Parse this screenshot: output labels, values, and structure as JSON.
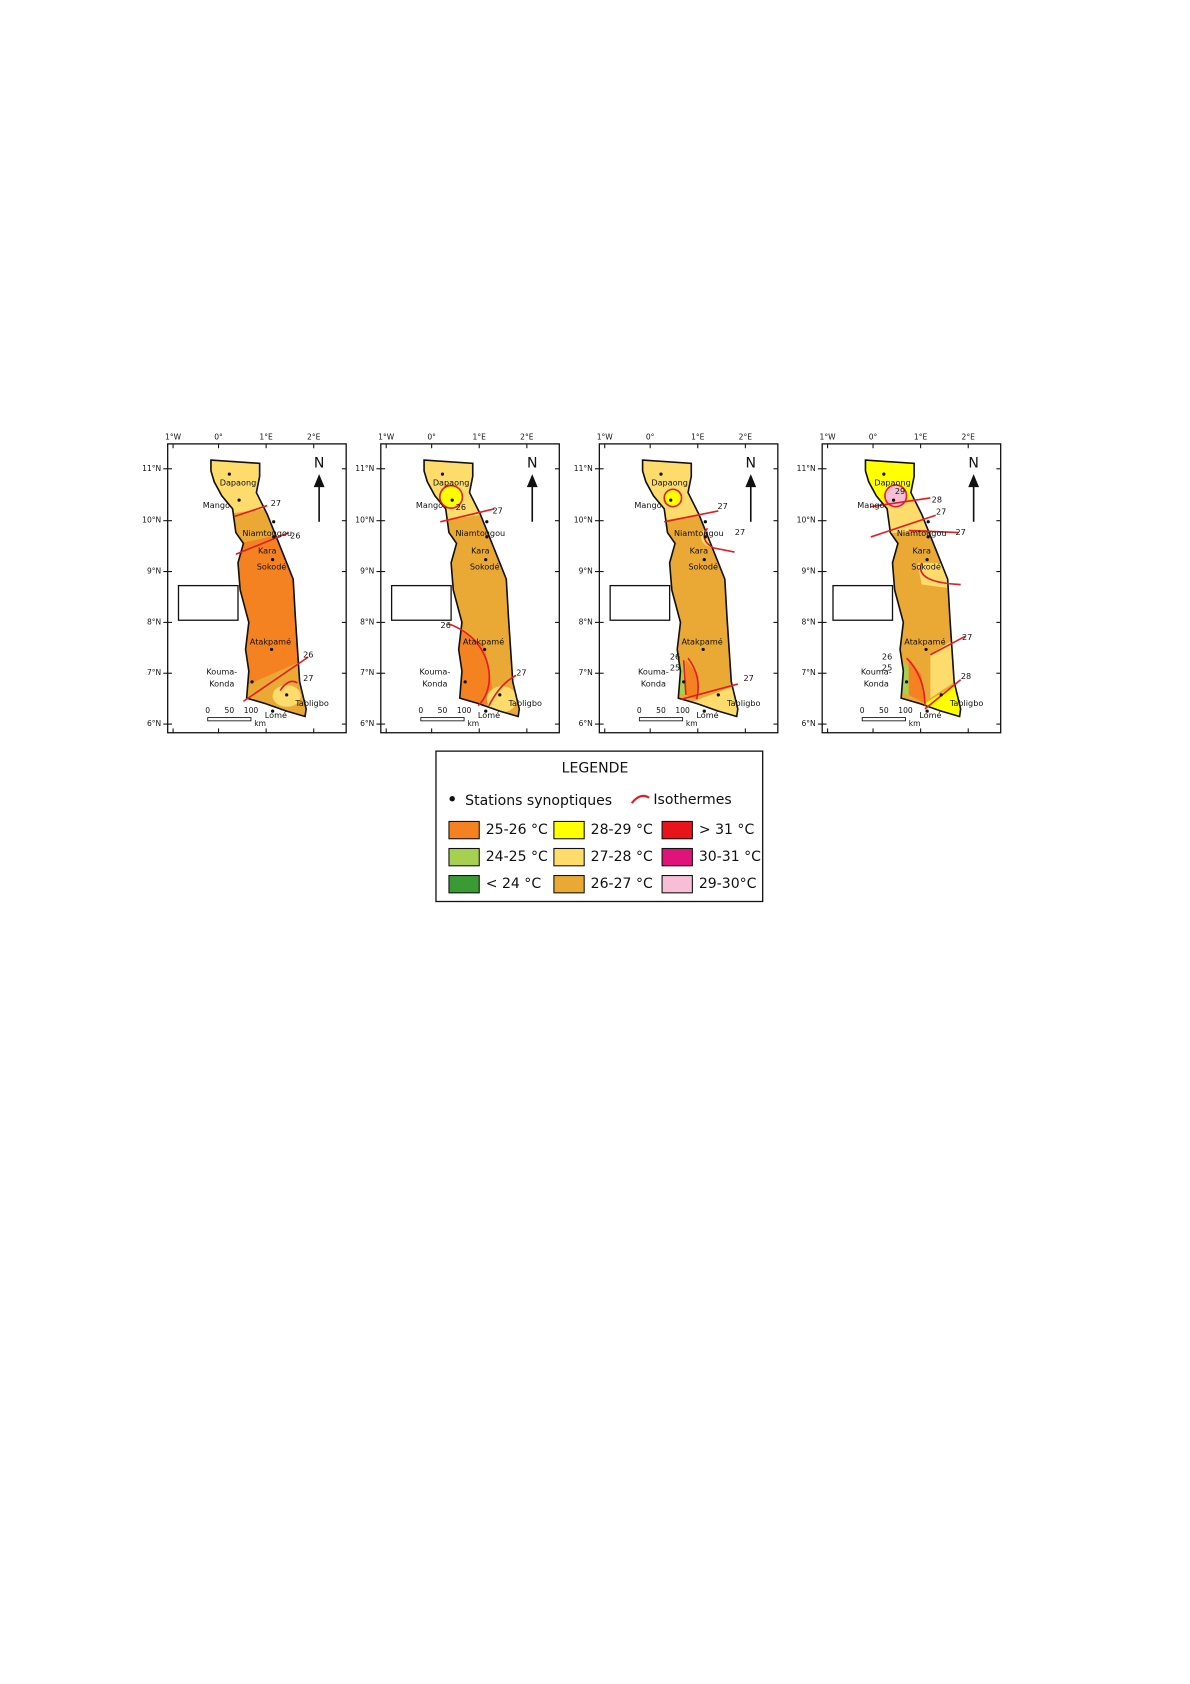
{
  "axes": {
    "longitudes": [
      "1°W",
      "0°",
      "1°E",
      "2°E"
    ],
    "latitudes": [
      "11°N",
      "10°N",
      "9°N",
      "8°N",
      "7°N",
      "6°N"
    ]
  },
  "scale": {
    "ticks": [
      "0",
      "50",
      "100"
    ],
    "unit": "km"
  },
  "north": "N",
  "stations": [
    "Dapaong",
    "Mango",
    "Niamtougou",
    "Kara",
    "Sokodé",
    "Atakpamé",
    [
      "Kouma-",
      "Konda"
    ],
    "Tabligbo",
    "Lomé"
  ],
  "maps": [
    {
      "isotherms": [
        27,
        26,
        26,
        27
      ]
    },
    {
      "isotherms": [
        26,
        27,
        26,
        27
      ]
    },
    {
      "isotherms": [
        27,
        27,
        26,
        25,
        27
      ]
    },
    {
      "isotherms": [
        29,
        28,
        27,
        27,
        27,
        26,
        25,
        28
      ]
    }
  ],
  "legend": {
    "title": "LEGENDE",
    "station": "Stations synoptiques",
    "isotherm": "Isothermes",
    "classes": [
      {
        "label": "25-26 °C",
        "color": "#f58220"
      },
      {
        "label": "24-25 °C",
        "color": "#a6d04f"
      },
      {
        "label": "< 24 °C",
        "color": "#3a9b35"
      },
      {
        "label": "28-29 °C",
        "color": "#ffff00"
      },
      {
        "label": "27-28 °C",
        "color": "#fddc6c"
      },
      {
        "label": "26-27 °C",
        "color": "#eaa935"
      },
      {
        "label": "> 31 °C",
        "color": "#e8141b"
      },
      {
        "label": "30-31 °C",
        "color": "#e0137a"
      },
      {
        "label": "29-30°C",
        "color": "#f7bfd6"
      }
    ]
  }
}
